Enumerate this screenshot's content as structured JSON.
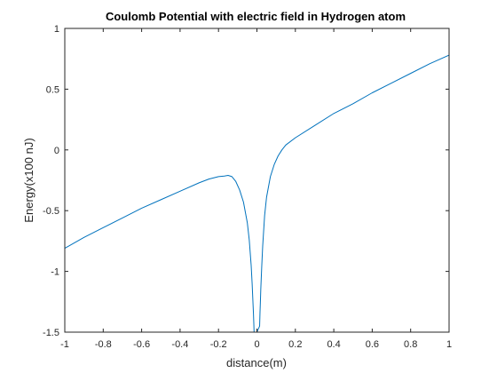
{
  "chart_data": {
    "type": "line",
    "title": "Coulomb Potential with electric field in Hydrogen atom",
    "xlabel": "distance(m)",
    "ylabel": "Energy(x100 nJ)",
    "xlim": [
      -1,
      1
    ],
    "ylim": [
      -1.5,
      1
    ],
    "xticks": [
      -1,
      -0.8,
      -0.6,
      -0.4,
      -0.2,
      0,
      0.2,
      0.4,
      0.6,
      0.8,
      1
    ],
    "xtick_labels": [
      "-1",
      "-0.8",
      "-0.6",
      "-0.4",
      "-0.2",
      "0",
      "0.2",
      "0.4",
      "0.6",
      "0.8",
      "1"
    ],
    "yticks": [
      -1.5,
      -1,
      -0.5,
      0,
      0.5,
      1
    ],
    "ytick_labels": [
      "-1.5",
      "-1",
      "-0.5",
      "0",
      "0.5",
      "1"
    ],
    "grid": false,
    "box": true,
    "line_color": "#0072BD",
    "series": [
      {
        "x": [
          -1,
          -0.9,
          -0.8,
          -0.7,
          -0.6,
          -0.5,
          -0.4,
          -0.3,
          -0.25,
          -0.2,
          -0.17,
          -0.15,
          -0.13,
          -0.11,
          -0.09,
          -0.07,
          -0.05,
          -0.04,
          -0.03,
          -0.025,
          -0.02,
          -0.018,
          -0.016,
          -0.014,
          0.014,
          0.016,
          0.018,
          0.02,
          0.025,
          0.03,
          0.04,
          0.05,
          0.07,
          0.09,
          0.11,
          0.13,
          0.15,
          0.2,
          0.3,
          0.4,
          0.5,
          0.6,
          0.7,
          0.8,
          0.9,
          1
        ],
        "y": [
          -0.81,
          -0.72,
          -0.64,
          -0.56,
          -0.48,
          -0.41,
          -0.34,
          -0.27,
          -0.24,
          -0.22,
          -0.215,
          -0.21,
          -0.22,
          -0.26,
          -0.33,
          -0.43,
          -0.6,
          -0.74,
          -0.95,
          -1.1,
          -1.28,
          -1.35,
          -1.44,
          -1.55,
          -1.45,
          -1.34,
          -1.25,
          -1.15,
          -0.96,
          -0.79,
          -0.54,
          -0.39,
          -0.22,
          -0.12,
          -0.05,
          0.0,
          0.04,
          0.1,
          0.2,
          0.3,
          0.38,
          0.47,
          0.55,
          0.63,
          0.71,
          0.78
        ]
      }
    ]
  }
}
